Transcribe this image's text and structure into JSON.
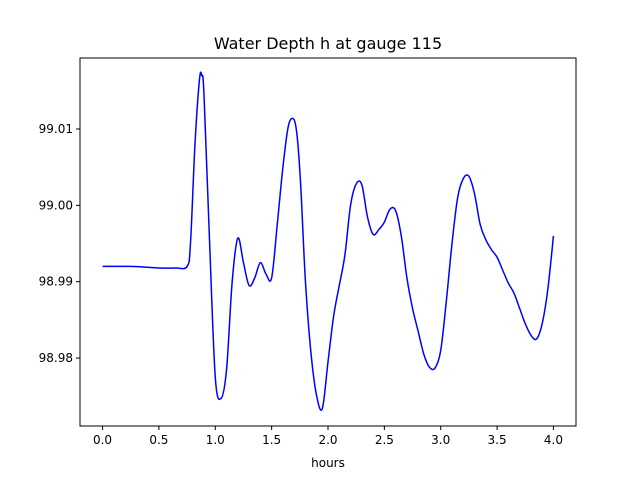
{
  "chart_data": {
    "type": "line",
    "title": "Water Depth h at gauge 115",
    "xlabel": "hours",
    "ylabel": "",
    "xlim": [
      -0.2,
      4.2
    ],
    "ylim": [
      98.9711,
      99.0193
    ],
    "grid": false,
    "legend": "none",
    "xticks": [
      0.0,
      0.5,
      1.0,
      1.5,
      2.0,
      2.5,
      3.0,
      3.5,
      4.0
    ],
    "xtick_labels": [
      "0.0",
      "0.5",
      "1.0",
      "1.5",
      "2.0",
      "2.5",
      "3.0",
      "3.5",
      "4.0"
    ],
    "yticks": [
      98.98,
      98.99,
      99.0,
      99.01
    ],
    "ytick_labels": [
      "98.98",
      "98.99",
      "99.00",
      "99.01"
    ],
    "series": [
      {
        "color": "#0000ff",
        "x": [
          0.0,
          0.25,
          0.5,
          0.65,
          0.75,
          0.78,
          0.82,
          0.86,
          0.88,
          0.9,
          0.95,
          1.0,
          1.05,
          1.1,
          1.15,
          1.2,
          1.25,
          1.3,
          1.35,
          1.4,
          1.45,
          1.5,
          1.55,
          1.6,
          1.65,
          1.7,
          1.73,
          1.76,
          1.8,
          1.85,
          1.9,
          1.95,
          2.0,
          2.05,
          2.1,
          2.15,
          2.2,
          2.25,
          2.3,
          2.35,
          2.4,
          2.45,
          2.5,
          2.55,
          2.6,
          2.65,
          2.7,
          2.75,
          2.8,
          2.85,
          2.9,
          2.95,
          3.0,
          3.05,
          3.1,
          3.15,
          3.2,
          3.25,
          3.3,
          3.35,
          3.4,
          3.45,
          3.5,
          3.55,
          3.6,
          3.65,
          3.7,
          3.75,
          3.8,
          3.85,
          3.9,
          3.95,
          4.0
        ],
        "y": [
          98.992,
          98.992,
          98.9918,
          98.9918,
          98.992,
          98.995,
          99.008,
          99.0165,
          99.017,
          99.0145,
          98.995,
          98.9775,
          98.9747,
          98.9785,
          98.99,
          98.9957,
          98.9925,
          98.9895,
          98.9905,
          98.9925,
          98.991,
          98.9905,
          98.9975,
          99.005,
          99.0105,
          99.0112,
          99.0085,
          99.002,
          98.99,
          98.9805,
          98.975,
          98.9734,
          98.9795,
          98.9855,
          98.9895,
          98.9935,
          99.0,
          99.0028,
          99.0027,
          98.9985,
          98.9962,
          98.9968,
          98.9978,
          98.9995,
          98.9993,
          98.996,
          98.9905,
          98.9865,
          98.9835,
          98.9805,
          98.9788,
          98.9787,
          98.981,
          98.9875,
          98.995,
          99.001,
          99.0035,
          99.0038,
          99.0015,
          98.9975,
          98.9955,
          98.9942,
          98.9932,
          98.9915,
          98.9898,
          98.9885,
          98.9865,
          98.9845,
          98.983,
          98.9825,
          98.9845,
          98.989,
          98.996
        ]
      }
    ]
  }
}
